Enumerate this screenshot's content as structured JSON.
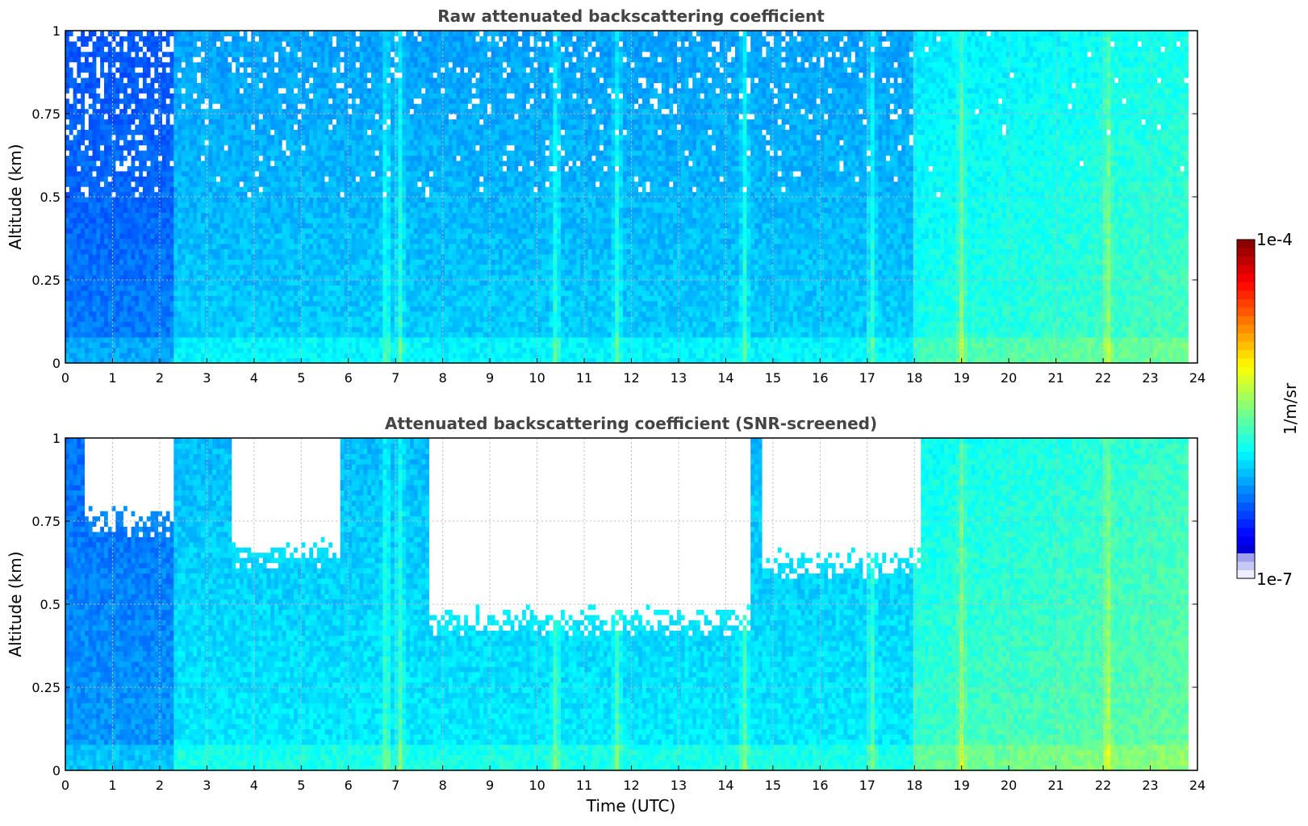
{
  "chart_data": [
    {
      "type": "heatmap",
      "title": "Raw attenuated backscattering coefficient",
      "xlabel": "",
      "ylabel": "Altitude (km)",
      "xlim": [
        0,
        24
      ],
      "ylim": [
        0,
        1
      ],
      "x_ticks": [
        "0",
        "1",
        "2",
        "3",
        "4",
        "5",
        "6",
        "7",
        "8",
        "9",
        "10",
        "11",
        "12",
        "13",
        "14",
        "15",
        "16",
        "17",
        "18",
        "19",
        "20",
        "21",
        "22",
        "23",
        "24"
      ],
      "y_ticks": [
        "0",
        "0.25",
        "0.5",
        "0.75",
        "1"
      ],
      "grid": true,
      "data_end_hour": 23.8,
      "colormap": "jet",
      "colorbar_range": [
        "1e-7",
        "1e-4"
      ],
      "bright_columns_hours": [
        6.8,
        7.1,
        10.4,
        11.7,
        14.4,
        17.1,
        19.0,
        22.1
      ],
      "noise_gaps": "scattered white pixels above ~0.5 km, strongest 0-2.3 h"
    },
    {
      "type": "heatmap",
      "title": "Attenuated backscattering coefficient (SNR-screened)",
      "xlabel": "Time (UTC)",
      "ylabel": "Altitude (km)",
      "xlim": [
        0,
        24
      ],
      "ylim": [
        0,
        1
      ],
      "x_ticks": [
        "0",
        "1",
        "2",
        "3",
        "4",
        "5",
        "6",
        "7",
        "8",
        "9",
        "10",
        "11",
        "12",
        "13",
        "14",
        "15",
        "16",
        "17",
        "18",
        "19",
        "20",
        "21",
        "22",
        "23",
        "24"
      ],
      "y_ticks": [
        "0",
        "0.25",
        "0.5",
        "0.75",
        "1"
      ],
      "grid": true,
      "data_end_hour": 23.8,
      "colormap": "jet",
      "colorbar_range": [
        "1e-7",
        "1e-4"
      ],
      "screened_regions": [
        {
          "from_hour": 0.4,
          "to_hour": 2.3,
          "lowest_km": 0.75
        },
        {
          "from_hour": 3.5,
          "to_hour": 5.8,
          "lowest_km": 0.65
        },
        {
          "from_hour": 7.7,
          "to_hour": 14.5,
          "lowest_km": 0.45
        },
        {
          "from_hour": 14.8,
          "to_hour": 18.1,
          "lowest_km": 0.62
        }
      ]
    }
  ],
  "colorbar": {
    "label": "1/m/sr",
    "top_label": "1e-4",
    "bottom_label": "1e-7"
  }
}
